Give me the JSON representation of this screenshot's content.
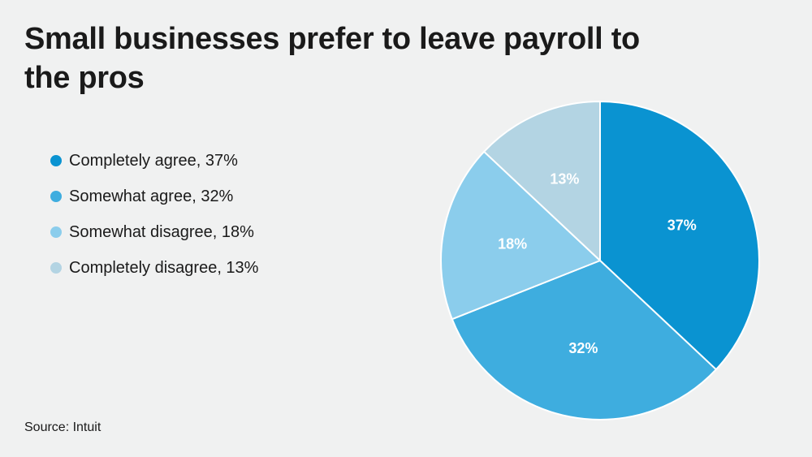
{
  "title": "Small businesses prefer to leave payroll to the pros",
  "source": "Source: Intuit",
  "colors": {
    "background": "#f0f1f1",
    "slice_stroke": "#ffffff"
  },
  "chart_data": {
    "type": "pie",
    "title": "Small businesses prefer to leave payroll to the pros",
    "legend_position": "left",
    "start_angle": "12 o'clock",
    "direction": "clockwise",
    "slices": [
      {
        "label": "Completely agree",
        "value": 37,
        "value_label": "37%",
        "legend_text": "Completely agree, 37%",
        "color": "#0a93d1"
      },
      {
        "label": "Somewhat agree",
        "value": 32,
        "value_label": "32%",
        "legend_text": "Somewhat agree, 32%",
        "color": "#3eaddf"
      },
      {
        "label": "Somewhat disagree",
        "value": 18,
        "value_label": "18%",
        "legend_text": "Somewhat disagree, 18%",
        "color": "#8bcdec"
      },
      {
        "label": "Completely disagree",
        "value": 13,
        "value_label": "13%",
        "legend_text": "Completely disagree, 13%",
        "color": "#b3d4e3"
      }
    ]
  }
}
